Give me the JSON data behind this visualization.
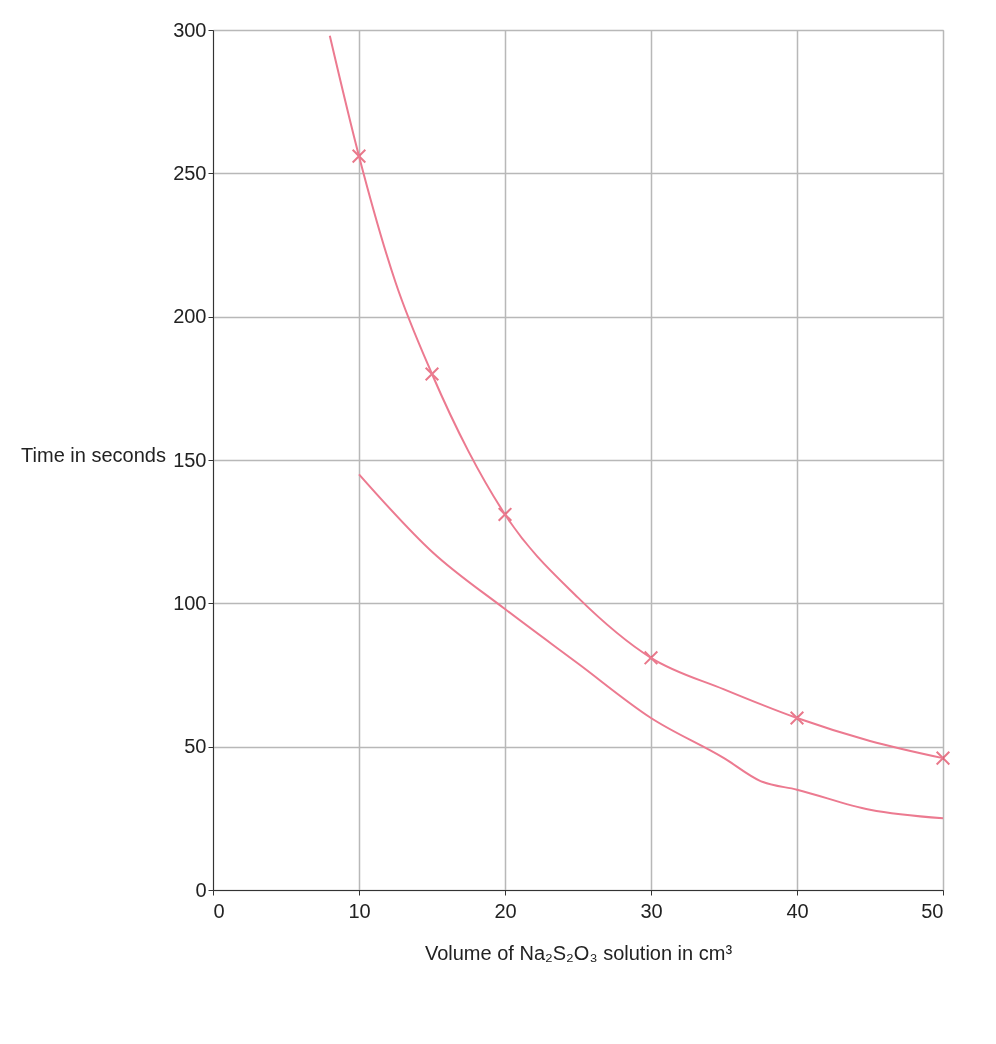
{
  "chart_data": {
    "type": "scatter",
    "xlabel": "Volume of Na₂S₂O₃ solution in cm³",
    "ylabel": "Time in seconds",
    "xlim": [
      0,
      50
    ],
    "ylim": [
      0,
      300
    ],
    "xticks": [
      0,
      10,
      20,
      30,
      40,
      50
    ],
    "yticks": [
      0,
      50,
      100,
      150,
      200,
      250,
      300
    ],
    "grid": true,
    "series": [
      {
        "marker": "cross",
        "color": "#e0405a",
        "x": [
          10,
          15,
          20,
          30,
          40,
          50
        ],
        "values": [
          256,
          180,
          131,
          81,
          60,
          46
        ]
      },
      {
        "type": "line",
        "marker": "none",
        "color": "#ec7a90",
        "x": [
          8,
          10,
          12.5,
          15,
          17.5,
          20,
          25,
          30,
          35,
          40,
          45,
          50
        ],
        "values": [
          298,
          256,
          212,
          180,
          153,
          131,
          102,
          81,
          70,
          60,
          52,
          46
        ]
      },
      {
        "type": "line",
        "marker": "none",
        "color": "#ec7a90",
        "x": [
          10,
          15,
          20,
          25,
          30,
          35,
          37.5,
          40,
          45,
          50
        ],
        "values": [
          145,
          118,
          98,
          79,
          60,
          46,
          38,
          35,
          28,
          25
        ]
      }
    ]
  }
}
